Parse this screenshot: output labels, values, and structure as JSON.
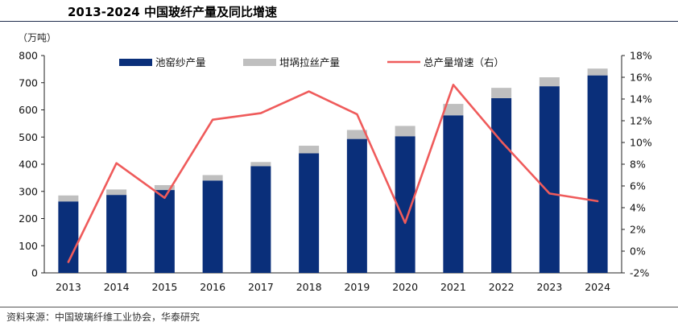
{
  "header": {
    "title": "2013-2024 中国玻纤产量及同比增速"
  },
  "unit_label": "（万吨）",
  "source": "资料来源：中国玻璃纤维工业协会，华泰研究",
  "colors": {
    "pool_kiln": "#0a2f7a",
    "crucible": "#bfbfbf",
    "growth": "#ef5b5b",
    "title_rule": "#1f2d4d"
  },
  "chart_data": {
    "type": "bar",
    "categories": [
      "2013",
      "2014",
      "2015",
      "2016",
      "2017",
      "2018",
      "2019",
      "2020",
      "2021",
      "2022",
      "2023",
      "2024"
    ],
    "series": [
      {
        "name": "池窑纱产量",
        "kind": "stacked-bar",
        "axis": "left",
        "values": [
          263,
          287,
          305,
          340,
          393,
          440,
          493,
          503,
          580,
          643,
          687,
          727
        ]
      },
      {
        "name": "坩埚拉丝产量",
        "kind": "stacked-bar",
        "axis": "left",
        "values": [
          22,
          20,
          18,
          20,
          15,
          28,
          33,
          38,
          42,
          38,
          33,
          25
        ]
      },
      {
        "name": "总产量增速（右）",
        "kind": "line",
        "axis": "right",
        "unit": "%",
        "values": [
          -1.0,
          8.1,
          4.9,
          12.1,
          12.7,
          14.7,
          12.6,
          2.6,
          15.3,
          10.1,
          5.3,
          4.6
        ]
      }
    ],
    "ylim_left": [
      0,
      800
    ],
    "ylim_right": [
      -2,
      18
    ],
    "yticks_left": [
      "0",
      "100",
      "200",
      "300",
      "400",
      "500",
      "600",
      "700",
      "800"
    ],
    "yticks_right": [
      "-2%",
      "0%",
      "2%",
      "4%",
      "6%",
      "8%",
      "10%",
      "12%",
      "14%",
      "16%",
      "18%"
    ],
    "legend_position": "top",
    "grid": false
  }
}
